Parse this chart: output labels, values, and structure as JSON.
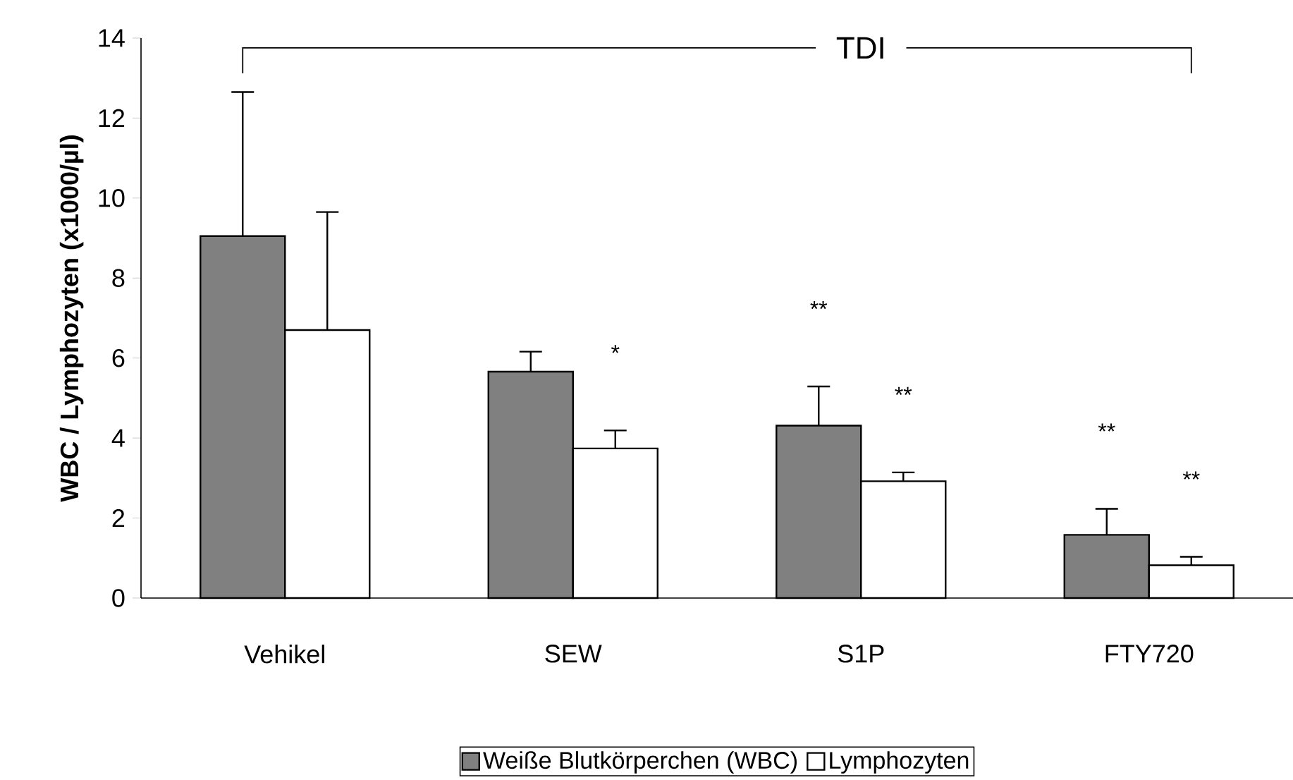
{
  "chart_data": {
    "type": "bar",
    "ylabel": "WBC / Lymphozyten (x1000/µl)",
    "categories": [
      "Vehikel",
      "SEW",
      "S1P",
      "FTY720"
    ],
    "series": [
      {
        "name": "Weiße Blutkörperchen (WBC)",
        "color": "#808080",
        "values": [
          9.05,
          5.66,
          4.31,
          1.58
        ],
        "errors": [
          3.6,
          0.5,
          0.98,
          0.65
        ]
      },
      {
        "name": "Lymphozyten",
        "color": "#ffffff",
        "values": [
          6.7,
          3.74,
          2.92,
          0.82
        ],
        "errors": [
          2.95,
          0.45,
          0.22,
          0.21
        ]
      }
    ],
    "ylim": [
      0,
      14
    ],
    "yticks": [
      0,
      2,
      4,
      6,
      8,
      10,
      12,
      14
    ],
    "grid": false,
    "legend": "bottom",
    "annotations": [
      "TDI",
      "*",
      "**",
      "**",
      "**",
      "**"
    ]
  }
}
